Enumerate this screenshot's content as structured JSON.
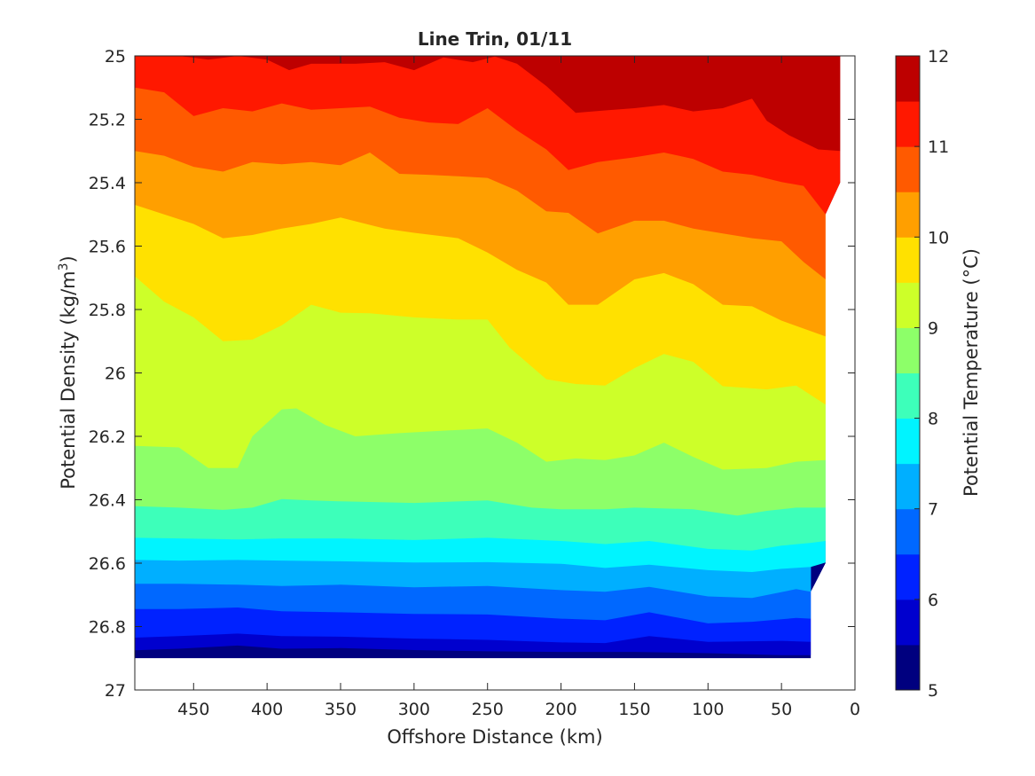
{
  "chart_data": {
    "type": "contourf",
    "title": "Line Trin, 01/11",
    "xlabel": "Offshore Distance (km)",
    "ylabel": "Potential Density (kg/m3)",
    "ylabel_parts": {
      "main": "Potential Density (kg/m",
      "superscript": "3",
      "close": ")"
    },
    "colorbar_label": "Potential Temperature (°C)",
    "x_reversed": true,
    "y_reversed": true,
    "xlim": [
      0,
      490
    ],
    "ylim": [
      25,
      27
    ],
    "x_ticks": [
      450,
      400,
      350,
      300,
      250,
      200,
      150,
      100,
      50,
      0
    ],
    "x_tick_labels": [
      "450",
      "400",
      "350",
      "300",
      "250",
      "200",
      "150",
      "100",
      "50",
      "0"
    ],
    "y_ticks": [
      25,
      25.2,
      25.4,
      25.6,
      25.8,
      26,
      26.2,
      26.4,
      26.6,
      26.8,
      27
    ],
    "y_tick_labels": [
      "25",
      "25.2",
      "25.4",
      "25.6",
      "25.8",
      "26",
      "26.2",
      "26.4",
      "26.6",
      "26.8",
      "27"
    ],
    "colorbar_range": [
      5,
      12
    ],
    "colorbar_ticks": [
      5,
      6,
      7,
      8,
      9,
      10,
      11,
      12
    ],
    "colorbar_tick_labels": [
      "5",
      "6",
      "7",
      "8",
      "9",
      "10",
      "11",
      "12"
    ],
    "levels": [
      5,
      5.5,
      6,
      6.5,
      7,
      7.5,
      8,
      8.5,
      9,
      9.5,
      10,
      10.5,
      11,
      11.5,
      12
    ],
    "colormap": "jet",
    "colors": [
      "#00007f",
      "#0000ce",
      "#0022ff",
      "#0068ff",
      "#00afff",
      "#00f4ff",
      "#3dffba",
      "#8dff69",
      "#cdff29",
      "#ffe100",
      "#ff9f00",
      "#ff5a00",
      "#ff1800",
      "#bd0000"
    ],
    "data_x_range": [
      10,
      490
    ],
    "data_y_max": 26.9,
    "bottom_edge": [
      [
        490,
        26.9
      ],
      [
        30,
        26.9
      ],
      [
        30,
        26.69
      ],
      [
        20,
        26.6
      ],
      [
        20,
        25.5
      ],
      [
        10,
        25.4
      ],
      [
        10,
        25
      ]
    ],
    "isotherms": [
      {
        "level": 5.5,
        "points": [
          [
            490,
            26.875
          ],
          [
            460,
            26.87
          ],
          [
            420,
            26.86
          ],
          [
            390,
            26.87
          ],
          [
            350,
            26.868
          ],
          [
            300,
            26.874
          ],
          [
            250,
            26.878
          ],
          [
            200,
            26.88
          ],
          [
            150,
            26.88
          ],
          [
            100,
            26.884
          ],
          [
            50,
            26.89
          ],
          [
            30,
            26.89
          ]
        ]
      },
      {
        "level": 6,
        "points": [
          [
            490,
            26.835
          ],
          [
            460,
            26.83
          ],
          [
            420,
            26.822
          ],
          [
            390,
            26.83
          ],
          [
            350,
            26.832
          ],
          [
            300,
            26.838
          ],
          [
            250,
            26.842
          ],
          [
            200,
            26.85
          ],
          [
            170,
            26.852
          ],
          [
            140,
            26.83
          ],
          [
            100,
            26.848
          ],
          [
            50,
            26.845
          ],
          [
            30,
            26.848
          ]
        ]
      },
      {
        "level": 6.5,
        "points": [
          [
            490,
            26.745
          ],
          [
            460,
            26.745
          ],
          [
            420,
            26.74
          ],
          [
            390,
            26.752
          ],
          [
            350,
            26.755
          ],
          [
            300,
            26.76
          ],
          [
            250,
            26.762
          ],
          [
            200,
            26.775
          ],
          [
            170,
            26.78
          ],
          [
            140,
            26.755
          ],
          [
            100,
            26.79
          ],
          [
            70,
            26.785
          ],
          [
            40,
            26.773
          ],
          [
            30,
            26.775
          ]
        ]
      },
      {
        "level": 7,
        "points": [
          [
            490,
            26.665
          ],
          [
            460,
            26.665
          ],
          [
            420,
            26.668
          ],
          [
            390,
            26.672
          ],
          [
            350,
            26.668
          ],
          [
            300,
            26.676
          ],
          [
            250,
            26.672
          ],
          [
            200,
            26.685
          ],
          [
            170,
            26.69
          ],
          [
            140,
            26.675
          ],
          [
            100,
            26.705
          ],
          [
            70,
            26.71
          ],
          [
            40,
            26.682
          ],
          [
            30,
            26.69
          ]
        ]
      },
      {
        "level": 7.5,
        "points": [
          [
            490,
            26.59
          ],
          [
            460,
            26.592
          ],
          [
            420,
            26.59
          ],
          [
            390,
            26.592
          ],
          [
            350,
            26.594
          ],
          [
            300,
            26.598
          ],
          [
            250,
            26.597
          ],
          [
            200,
            26.602
          ],
          [
            170,
            26.615
          ],
          [
            140,
            26.605
          ],
          [
            100,
            26.622
          ],
          [
            70,
            26.628
          ],
          [
            50,
            26.618
          ],
          [
            30,
            26.612
          ],
          [
            20,
            26.598
          ]
        ]
      },
      {
        "level": 8,
        "points": [
          [
            490,
            26.52
          ],
          [
            460,
            26.522
          ],
          [
            420,
            26.525
          ],
          [
            390,
            26.522
          ],
          [
            350,
            26.522
          ],
          [
            300,
            26.527
          ],
          [
            250,
            26.52
          ],
          [
            200,
            26.53
          ],
          [
            170,
            26.54
          ],
          [
            140,
            26.53
          ],
          [
            100,
            26.555
          ],
          [
            70,
            26.56
          ],
          [
            50,
            26.545
          ],
          [
            30,
            26.536
          ],
          [
            20,
            26.53
          ]
        ]
      },
      {
        "level": 8.5,
        "points": [
          [
            490,
            26.42
          ],
          [
            460,
            26.425
          ],
          [
            430,
            26.432
          ],
          [
            410,
            26.425
          ],
          [
            390,
            26.398
          ],
          [
            370,
            26.402
          ],
          [
            350,
            26.405
          ],
          [
            300,
            26.41
          ],
          [
            250,
            26.402
          ],
          [
            220,
            26.425
          ],
          [
            200,
            26.43
          ],
          [
            170,
            26.43
          ],
          [
            150,
            26.425
          ],
          [
            110,
            26.43
          ],
          [
            80,
            26.45
          ],
          [
            60,
            26.435
          ],
          [
            40,
            26.425
          ],
          [
            20,
            26.425
          ]
        ]
      },
      {
        "level": 9,
        "points": [
          [
            490,
            26.23
          ],
          [
            460,
            26.235
          ],
          [
            440,
            26.3
          ],
          [
            420,
            26.3
          ],
          [
            410,
            26.2
          ],
          [
            390,
            26.115
          ],
          [
            380,
            26.112
          ],
          [
            360,
            26.165
          ],
          [
            340,
            26.2
          ],
          [
            310,
            26.19
          ],
          [
            280,
            26.182
          ],
          [
            250,
            26.175
          ],
          [
            230,
            26.22
          ],
          [
            210,
            26.28
          ],
          [
            190,
            26.27
          ],
          [
            170,
            26.275
          ],
          [
            150,
            26.26
          ],
          [
            130,
            26.22
          ],
          [
            110,
            26.265
          ],
          [
            90,
            26.305
          ],
          [
            60,
            26.3
          ],
          [
            40,
            26.28
          ],
          [
            20,
            26.275
          ]
        ]
      },
      {
        "level": 9.5,
        "points": [
          [
            490,
            25.695
          ],
          [
            470,
            25.775
          ],
          [
            450,
            25.825
          ],
          [
            430,
            25.9
          ],
          [
            410,
            25.895
          ],
          [
            390,
            25.85
          ],
          [
            370,
            25.785
          ],
          [
            350,
            25.81
          ],
          [
            330,
            25.812
          ],
          [
            300,
            25.825
          ],
          [
            270,
            25.832
          ],
          [
            250,
            25.832
          ],
          [
            235,
            25.92
          ],
          [
            210,
            26.02
          ],
          [
            190,
            26.035
          ],
          [
            170,
            26.04
          ],
          [
            150,
            25.985
          ],
          [
            130,
            25.94
          ],
          [
            110,
            25.965
          ],
          [
            90,
            26.042
          ],
          [
            60,
            26.052
          ],
          [
            40,
            26.04
          ],
          [
            20,
            26.1
          ]
        ]
      },
      {
        "level": 10,
        "points": [
          [
            490,
            25.47
          ],
          [
            470,
            25.5
          ],
          [
            450,
            25.53
          ],
          [
            430,
            25.575
          ],
          [
            410,
            25.565
          ],
          [
            390,
            25.545
          ],
          [
            370,
            25.53
          ],
          [
            350,
            25.51
          ],
          [
            320,
            25.545
          ],
          [
            300,
            25.558
          ],
          [
            270,
            25.575
          ],
          [
            250,
            25.62
          ],
          [
            230,
            25.675
          ],
          [
            210,
            25.715
          ],
          [
            195,
            25.785
          ],
          [
            175,
            25.785
          ],
          [
            150,
            25.705
          ],
          [
            130,
            25.685
          ],
          [
            110,
            25.72
          ],
          [
            90,
            25.785
          ],
          [
            70,
            25.79
          ],
          [
            50,
            25.835
          ],
          [
            20,
            25.885
          ]
        ]
      },
      {
        "level": 10.5,
        "points": [
          [
            490,
            25.3
          ],
          [
            470,
            25.315
          ],
          [
            450,
            25.35
          ],
          [
            430,
            25.365
          ],
          [
            410,
            25.335
          ],
          [
            390,
            25.342
          ],
          [
            370,
            25.335
          ],
          [
            350,
            25.345
          ],
          [
            330,
            25.305
          ],
          [
            310,
            25.372
          ],
          [
            290,
            25.375
          ],
          [
            270,
            25.38
          ],
          [
            250,
            25.385
          ],
          [
            230,
            25.425
          ],
          [
            210,
            25.49
          ],
          [
            195,
            25.495
          ],
          [
            175,
            25.56
          ],
          [
            150,
            25.52
          ],
          [
            130,
            25.52
          ],
          [
            110,
            25.545
          ],
          [
            90,
            25.56
          ],
          [
            70,
            25.575
          ],
          [
            50,
            25.585
          ],
          [
            35,
            25.65
          ],
          [
            20,
            25.705
          ]
        ]
      },
      {
        "level": 11,
        "points": [
          [
            490,
            25.1
          ],
          [
            470,
            25.115
          ],
          [
            450,
            25.19
          ],
          [
            430,
            25.165
          ],
          [
            410,
            25.175
          ],
          [
            390,
            25.15
          ],
          [
            370,
            25.17
          ],
          [
            350,
            25.165
          ],
          [
            330,
            25.16
          ],
          [
            310,
            25.195
          ],
          [
            290,
            25.21
          ],
          [
            270,
            25.215
          ],
          [
            250,
            25.165
          ],
          [
            230,
            25.235
          ],
          [
            210,
            25.295
          ],
          [
            195,
            25.36
          ],
          [
            175,
            25.335
          ],
          [
            150,
            25.32
          ],
          [
            130,
            25.305
          ],
          [
            110,
            25.325
          ],
          [
            90,
            25.365
          ],
          [
            70,
            25.375
          ],
          [
            50,
            25.398
          ],
          [
            35,
            25.41
          ],
          [
            20,
            25.5
          ],
          [
            10,
            25.4
          ]
        ]
      },
      {
        "level": 11.5,
        "points": [
          [
            490,
            25
          ],
          [
            460,
            25
          ],
          [
            440,
            25.012
          ],
          [
            420,
            25
          ],
          [
            400,
            25.012
          ],
          [
            385,
            25.045
          ],
          [
            370,
            25.025
          ],
          [
            340,
            25.025
          ],
          [
            320,
            25.02
          ],
          [
            300,
            25.045
          ],
          [
            280,
            25.005
          ],
          [
            260,
            25.02
          ],
          [
            245,
            25.002
          ],
          [
            230,
            25.025
          ],
          [
            210,
            25.095
          ],
          [
            190,
            25.18
          ],
          [
            170,
            25.172
          ],
          [
            150,
            25.165
          ],
          [
            130,
            25.155
          ],
          [
            110,
            25.175
          ],
          [
            90,
            25.165
          ],
          [
            70,
            25.135
          ],
          [
            60,
            25.205
          ],
          [
            45,
            25.25
          ],
          [
            25,
            25.295
          ],
          [
            10,
            25.3
          ]
        ]
      },
      {
        "level": 12,
        "points": [
          [
            490,
            25
          ],
          [
            120,
            25
          ],
          [
            90,
            25
          ],
          [
            80,
            25.005
          ],
          [
            60,
            25.055
          ],
          [
            40,
            25.035
          ],
          [
            30,
            25.055
          ],
          [
            10,
            25.085
          ]
        ]
      }
    ]
  }
}
